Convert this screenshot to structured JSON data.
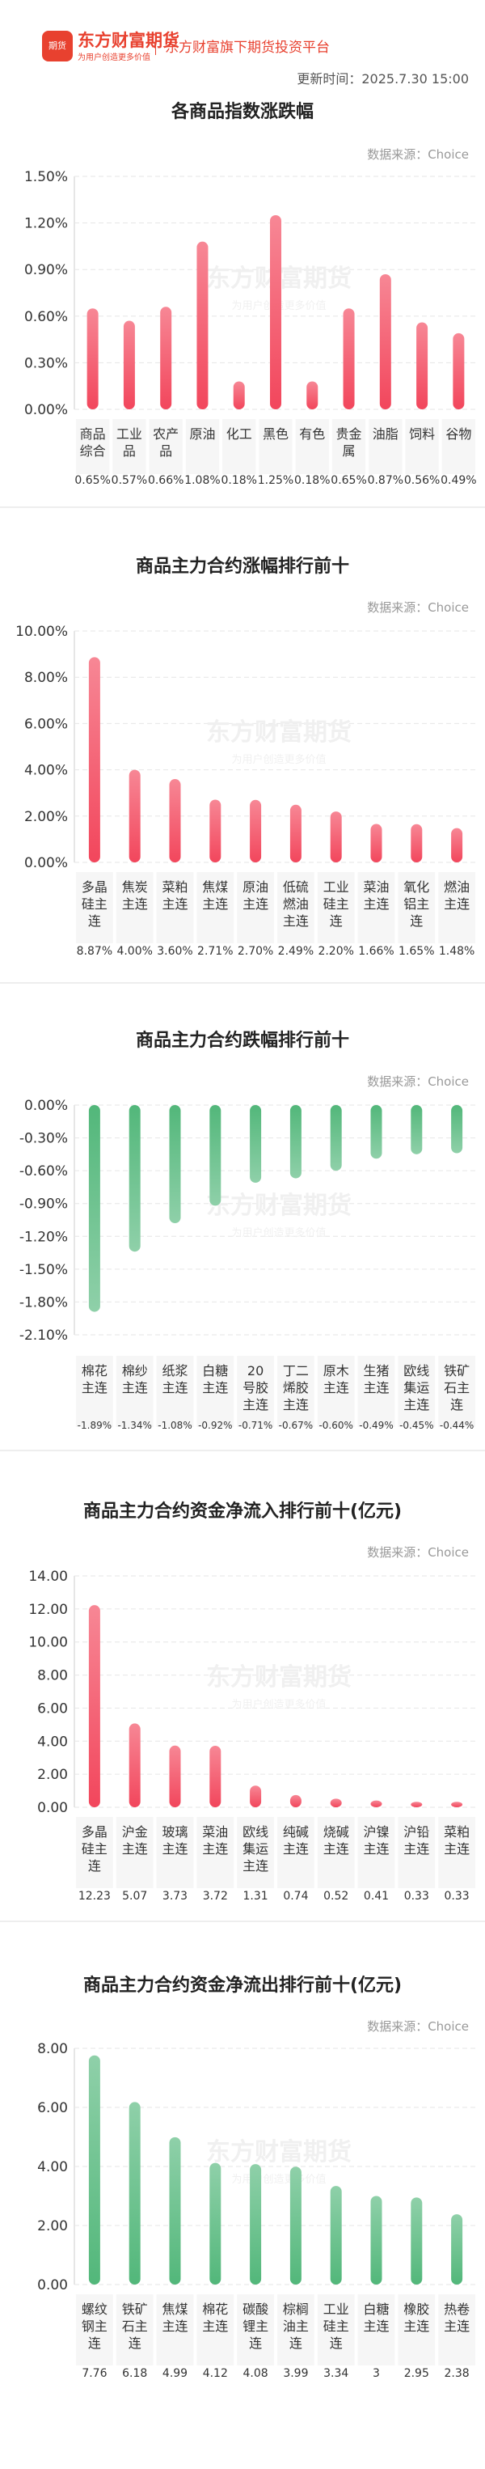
{
  "header": {
    "logo_text": "期货",
    "brand": "东方财富期货",
    "brand_slogan": "为用户创造更多价值",
    "platform": "东方财富旗下期货投资平台",
    "update_label": "更新时间：",
    "update_time": "2025.7.30 15:00",
    "colors": {
      "brand": "#e8412f",
      "up": "#f2465c",
      "down": "#52b77a"
    }
  },
  "sections": [
    {
      "title": "各商品指数涨跌幅",
      "source": "数据来源：Choice"
    },
    {
      "title": "商品主力合约涨幅排行前十",
      "source": "数据来源：Choice"
    },
    {
      "title": "商品主力合约跌幅排行前十",
      "source": "数据来源：Choice"
    },
    {
      "title": "商品主力合约资金净流入排行前十(亿元)",
      "source": "数据来源：Choice"
    },
    {
      "title": "商品主力合约资金净流出排行前十(亿元)",
      "source": "数据来源：Choice"
    }
  ],
  "watermark": {
    "main": "东方财富期货",
    "sub": "为用户创造更多价值"
  },
  "chart_data": [
    {
      "type": "bar",
      "title": "各商品指数涨跌幅",
      "categories": [
        "商品综合",
        "工业品",
        "农产品",
        "原油",
        "化工",
        "黑色",
        "有色",
        "贵金属",
        "油脂",
        "饲料",
        "谷物"
      ],
      "values": [
        0.65,
        0.57,
        0.66,
        1.08,
        0.18,
        1.25,
        0.18,
        0.65,
        0.87,
        0.56,
        0.49
      ],
      "value_labels": [
        "0.65%",
        "0.57%",
        "0.66%",
        "1.08%",
        "0.18%",
        "1.25%",
        "0.18%",
        "0.65%",
        "0.87%",
        "0.56%",
        "0.49%"
      ],
      "yticks": [
        "1.50%",
        "1.20%",
        "0.90%",
        "0.60%",
        "0.30%",
        "0.00%"
      ],
      "ylim": [
        0,
        1.5
      ],
      "color": "#f2465c",
      "grid": true
    },
    {
      "type": "bar",
      "title": "商品主力合约涨幅排行前十",
      "categories": [
        "多晶硅主连",
        "焦炭主连",
        "菜粕主连",
        "焦煤主连",
        "原油主连",
        "低硫燃油主连",
        "工业硅主连",
        "菜油主连",
        "氧化铝主连",
        "燃油主连"
      ],
      "values": [
        8.87,
        4.0,
        3.6,
        2.71,
        2.7,
        2.49,
        2.2,
        1.66,
        1.65,
        1.48
      ],
      "value_labels": [
        "8.87%",
        "4.00%",
        "3.60%",
        "2.71%",
        "2.70%",
        "2.49%",
        "2.20%",
        "1.66%",
        "1.65%",
        "1.48%"
      ],
      "yticks": [
        "10.00%",
        "8.00%",
        "6.00%",
        "4.00%",
        "2.00%",
        "0.00%"
      ],
      "ylim": [
        0,
        10
      ],
      "color": "#f2465c",
      "grid": true
    },
    {
      "type": "bar",
      "title": "商品主力合约跌幅排行前十",
      "categories": [
        "棉花主连",
        "棉纱主连",
        "纸浆主连",
        "白糖主连",
        "20号胶主连",
        "丁二烯胶主连",
        "原木主连",
        "生猪主连",
        "欧线集运主连",
        "铁矿石主连"
      ],
      "values": [
        -1.89,
        -1.34,
        -1.08,
        -0.92,
        -0.71,
        -0.67,
        -0.6,
        -0.49,
        -0.45,
        -0.44
      ],
      "value_labels": [
        "-1.89%",
        "-1.34%",
        "-1.08%",
        "-0.92%",
        "-0.71%",
        "-0.67%",
        "-0.60%",
        "-0.49%",
        "-0.45%",
        "-0.44%"
      ],
      "yticks": [
        "0.00%",
        "-0.30%",
        "-0.60%",
        "-0.90%",
        "-1.20%",
        "-1.50%",
        "-1.80%",
        "-2.10%"
      ],
      "ylim": [
        -2.1,
        0
      ],
      "color": "#52b77a",
      "grid": true
    },
    {
      "type": "bar",
      "title": "商品主力合约资金净流入排行前十(亿元)",
      "categories": [
        "多晶硅主连",
        "沪金主连",
        "玻璃主连",
        "菜油主连",
        "欧线集运主连",
        "纯碱主连",
        "烧碱主连",
        "沪镍主连",
        "沪铅主连",
        "菜粕主连"
      ],
      "values": [
        12.23,
        5.07,
        3.73,
        3.72,
        1.31,
        0.74,
        0.52,
        0.41,
        0.33,
        0.33
      ],
      "value_labels": [
        "12.23",
        "5.07",
        "3.73",
        "3.72",
        "1.31",
        "0.74",
        "0.52",
        "0.41",
        "0.33",
        "0.33"
      ],
      "yticks": [
        "14.00",
        "12.00",
        "10.00",
        "8.00",
        "6.00",
        "4.00",
        "2.00",
        "0.00"
      ],
      "ylim": [
        0,
        14
      ],
      "color": "#f2465c",
      "grid": true
    },
    {
      "type": "bar",
      "title": "商品主力合约资金净流出排行前十(亿元)",
      "categories": [
        "螺纹钢主连",
        "铁矿石主连",
        "焦煤主连",
        "棉花主连",
        "碳酸锂主连",
        "棕榈油主连",
        "工业硅主连",
        "白糖主连",
        "橡胶主连",
        "热卷主连"
      ],
      "values": [
        7.76,
        6.18,
        4.99,
        4.12,
        4.08,
        3.99,
        3.34,
        3,
        2.95,
        2.38
      ],
      "value_labels": [
        "7.76",
        "6.18",
        "4.99",
        "4.12",
        "4.08",
        "3.99",
        "3.34",
        "3",
        "2.95",
        "2.38"
      ],
      "yticks": [
        "8.00",
        "6.00",
        "4.00",
        "2.00",
        "0.00"
      ],
      "ylim": [
        0,
        8
      ],
      "color": "#52b77a",
      "grid": true
    }
  ]
}
